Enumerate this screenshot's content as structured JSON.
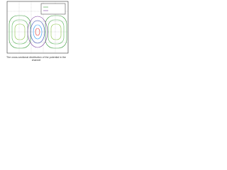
{
  "figure": {
    "caption": "The cross-sectional distribution of the potential in the channel"
  }
}
